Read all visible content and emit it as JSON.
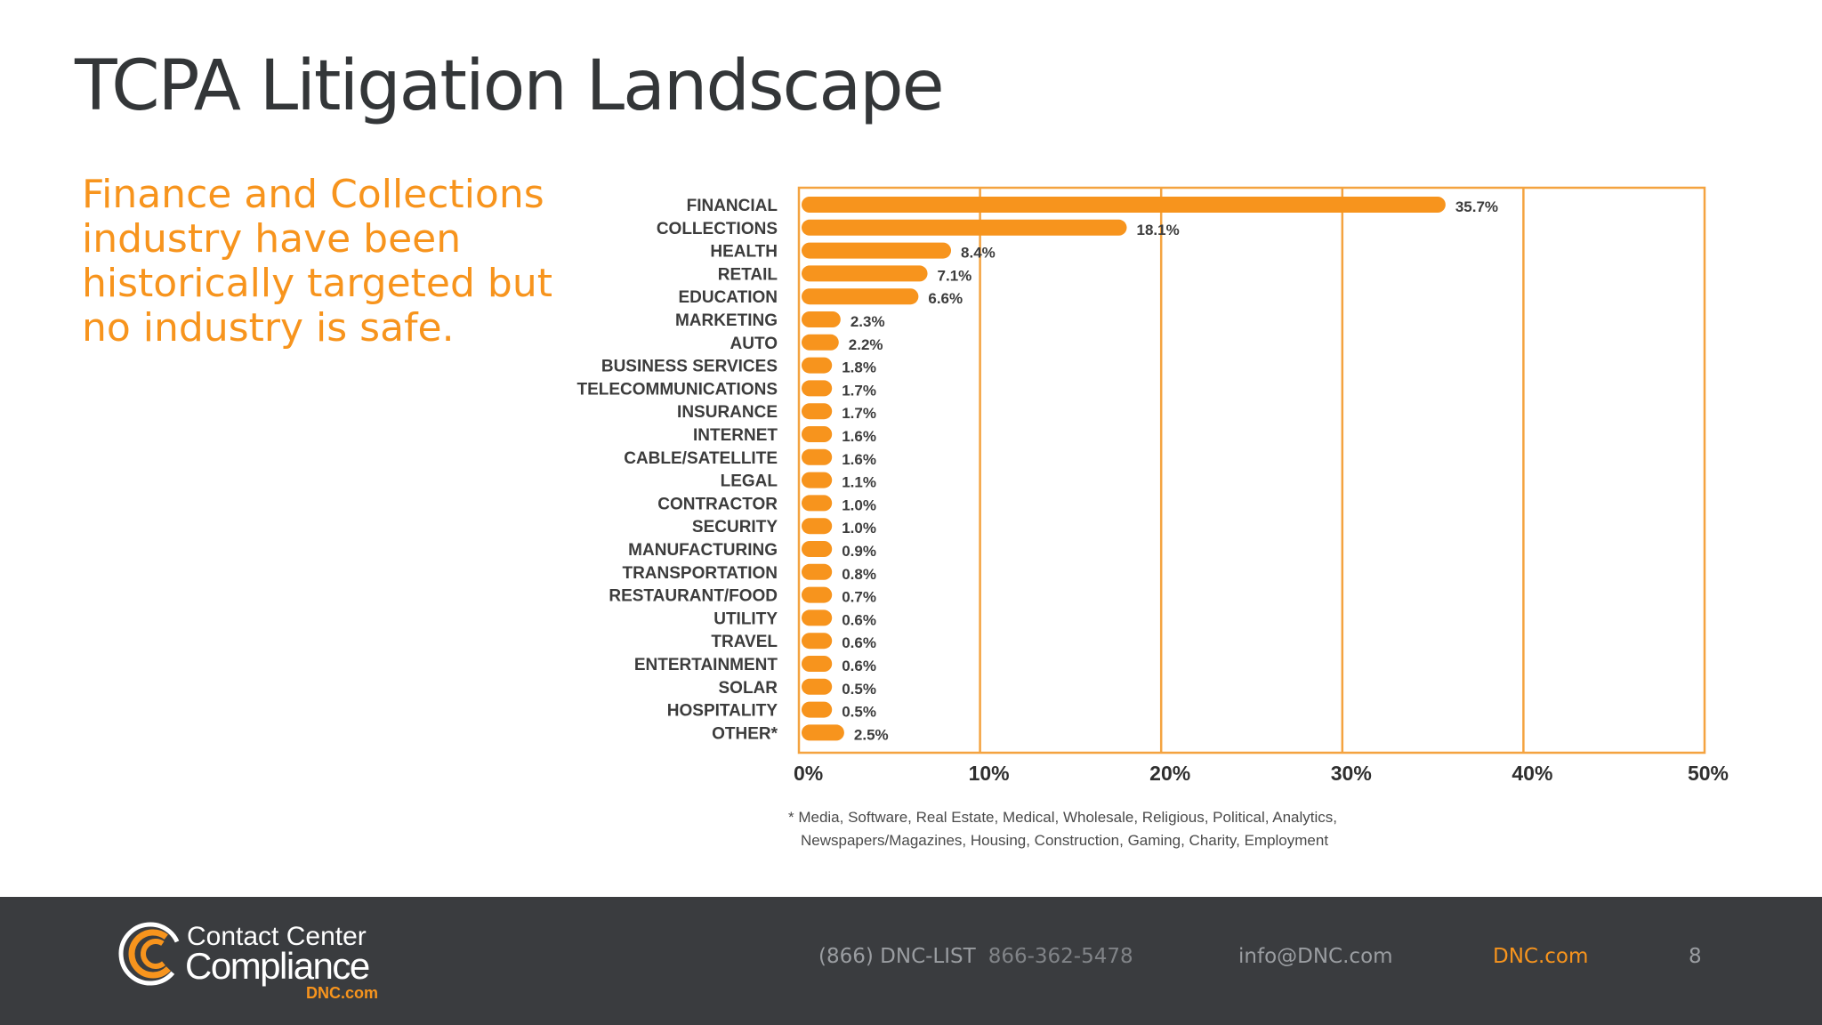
{
  "title": "TCPA Litigation Landscape",
  "subtitle": "Finance and Collections industry have been historically targeted but no industry is safe.",
  "chart_data": {
    "type": "bar",
    "orientation": "horizontal",
    "title": "",
    "xlabel": "",
    "ylabel": "",
    "xlim": [
      0,
      50
    ],
    "x_ticks": [
      0,
      10,
      20,
      30,
      40,
      50
    ],
    "x_tick_labels": [
      "0%",
      "10%",
      "20%",
      "30%",
      "40%",
      "50%"
    ],
    "grid": true,
    "categories": [
      "FINANCIAL",
      "COLLECTIONS",
      "HEALTH",
      "RETAIL",
      "EDUCATION",
      "MARKETING",
      "AUTO",
      "BUSINESS SERVICES",
      "TELECOMMUNICATIONS",
      "INSURANCE",
      "INTERNET",
      "CABLE/SATELLITE",
      "LEGAL",
      "CONTRACTOR",
      "SECURITY",
      "MANUFACTURING",
      "TRANSPORTATION",
      "RESTAURANT/FOOD",
      "UTILITY",
      "TRAVEL",
      "ENTERTAINMENT",
      "SOLAR",
      "HOSPITALITY",
      "OTHER*"
    ],
    "values": [
      35.7,
      18.1,
      8.4,
      7.1,
      6.6,
      2.3,
      2.2,
      1.8,
      1.7,
      1.7,
      1.6,
      1.6,
      1.1,
      1.0,
      1.0,
      0.9,
      0.8,
      0.7,
      0.6,
      0.6,
      0.6,
      0.5,
      0.5,
      2.5
    ],
    "value_labels": [
      "35.7%",
      "18.1%",
      "8.4%",
      "7.1%",
      "6.6%",
      "2.3%",
      "2.2%",
      "1.8%",
      "1.7%",
      "1.7%",
      "1.6%",
      "1.6%",
      "1.1%",
      "1.0%",
      "1.0%",
      "0.9%",
      "0.8%",
      "0.7%",
      "0.6%",
      "0.6%",
      "0.6%",
      "0.5%",
      "0.5%",
      "2.5%"
    ],
    "bar_color": "#f7941d",
    "frame_color": "#f4a340"
  },
  "footnote": {
    "line1": "* Media, Software, Real Estate, Medical, Wholesale, Religious, Political, Analytics,",
    "line2": "Newspapers/Magazines, Housing, Construction, Gaming, Charity, Employment"
  },
  "footer": {
    "logo_line1": "Contact Center",
    "logo_line2": "Compliance",
    "logo_line3": "DNC.com",
    "phone": "(866) DNC-LIST",
    "phone_alt": "866-362-5478",
    "email": "info@DNC.com",
    "website": "DNC.com",
    "page_number": "8"
  },
  "colors": {
    "accent": "#f7941d",
    "title": "#333638",
    "footer_bg": "#3a3c3f"
  }
}
